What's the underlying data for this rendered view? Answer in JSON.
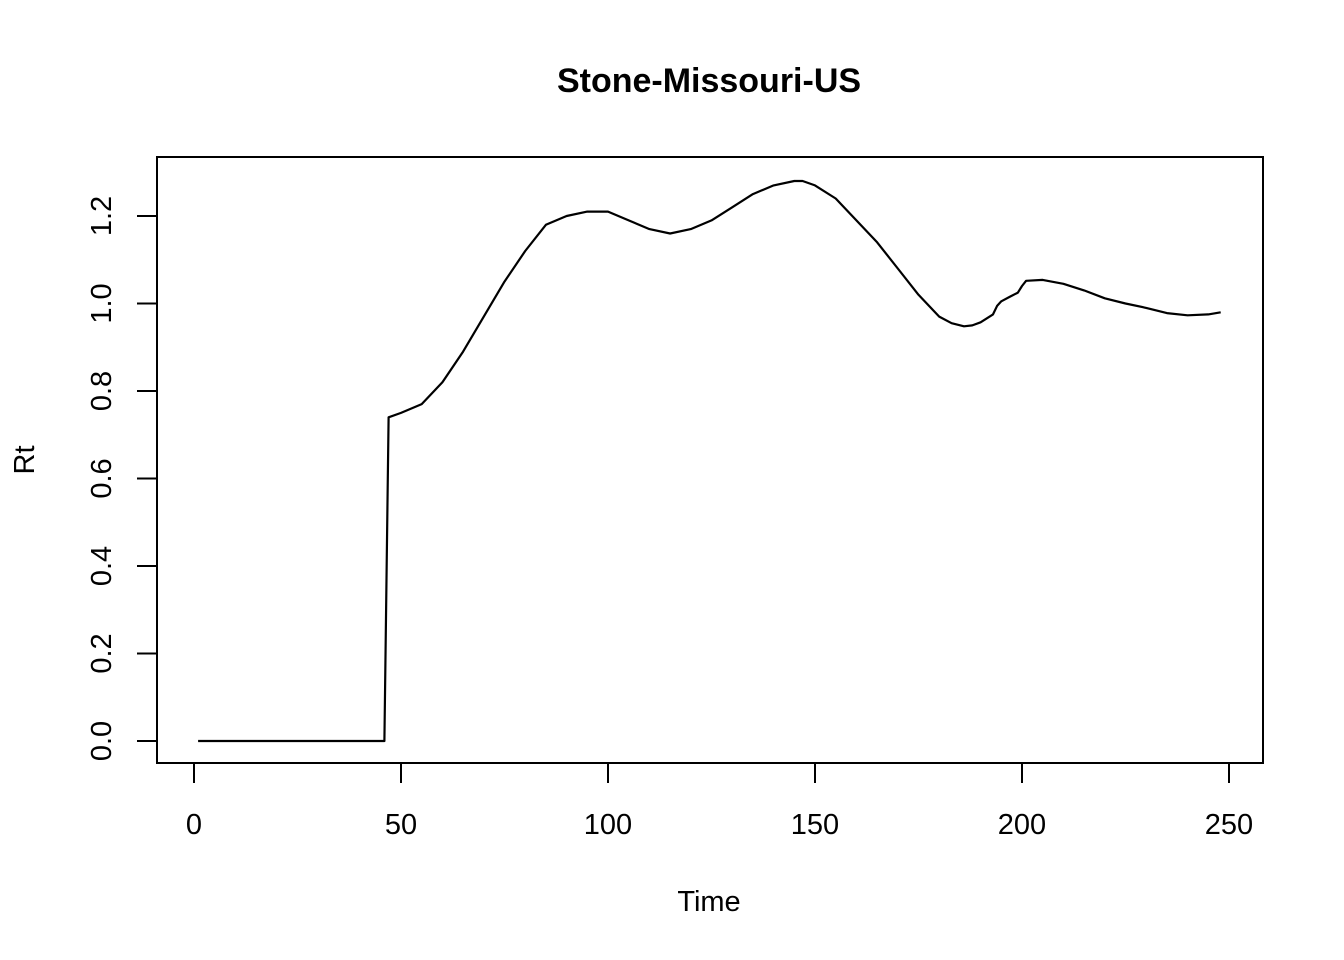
{
  "chart_data": {
    "type": "line",
    "title": "Stone-Missouri-US",
    "xlabel": "Time",
    "ylabel": "Rt",
    "xlim": [
      1,
      248
    ],
    "ylim": [
      0,
      1.28
    ],
    "x_ticks": [
      0,
      50,
      100,
      150,
      200,
      250
    ],
    "x_tick_labels": [
      "0",
      "50",
      "100",
      "150",
      "200",
      "250"
    ],
    "y_ticks": [
      0.0,
      0.2,
      0.4,
      0.6,
      0.8,
      1.0,
      1.2
    ],
    "y_tick_labels": [
      "0.0",
      "0.2",
      "0.4",
      "0.6",
      "0.8",
      "1.0",
      "1.2"
    ],
    "grid": false,
    "legend": "none",
    "series": [
      {
        "color": "#000000",
        "x": [
          1,
          10,
          20,
          30,
          40,
          46,
          47,
          50,
          55,
          60,
          65,
          70,
          75,
          80,
          85,
          90,
          95,
          98,
          100,
          105,
          110,
          115,
          120,
          125,
          130,
          135,
          140,
          145,
          147,
          150,
          155,
          160,
          165,
          170,
          175,
          180,
          183,
          186,
          188,
          190,
          193,
          194,
          195,
          197,
          199,
          200,
          201,
          205,
          210,
          215,
          220,
          225,
          230,
          235,
          240,
          245,
          248
        ],
        "y": [
          0,
          0,
          0,
          0,
          0,
          0,
          0.74,
          0.75,
          0.77,
          0.82,
          0.89,
          0.97,
          1.05,
          1.12,
          1.18,
          1.2,
          1.21,
          1.21,
          1.21,
          1.19,
          1.17,
          1.16,
          1.17,
          1.19,
          1.22,
          1.25,
          1.27,
          1.28,
          1.28,
          1.27,
          1.24,
          1.19,
          1.14,
          1.08,
          1.02,
          0.97,
          0.955,
          0.948,
          0.95,
          0.957,
          0.975,
          0.995,
          1.005,
          1.015,
          1.025,
          1.04,
          1.052,
          1.054,
          1.045,
          1.03,
          1.012,
          1.0,
          0.99,
          0.978,
          0.973,
          0.975,
          0.98
        ]
      }
    ]
  }
}
